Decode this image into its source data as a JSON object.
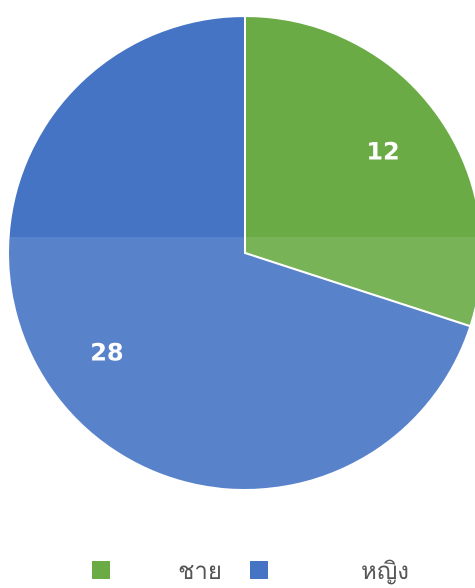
{
  "chart_data": {
    "type": "pie",
    "categories": [
      "ชาย",
      "หญิง"
    ],
    "values": [
      12,
      28
    ],
    "colors": [
      "#6aab46",
      "#4674c5"
    ],
    "legend": "bottom"
  }
}
